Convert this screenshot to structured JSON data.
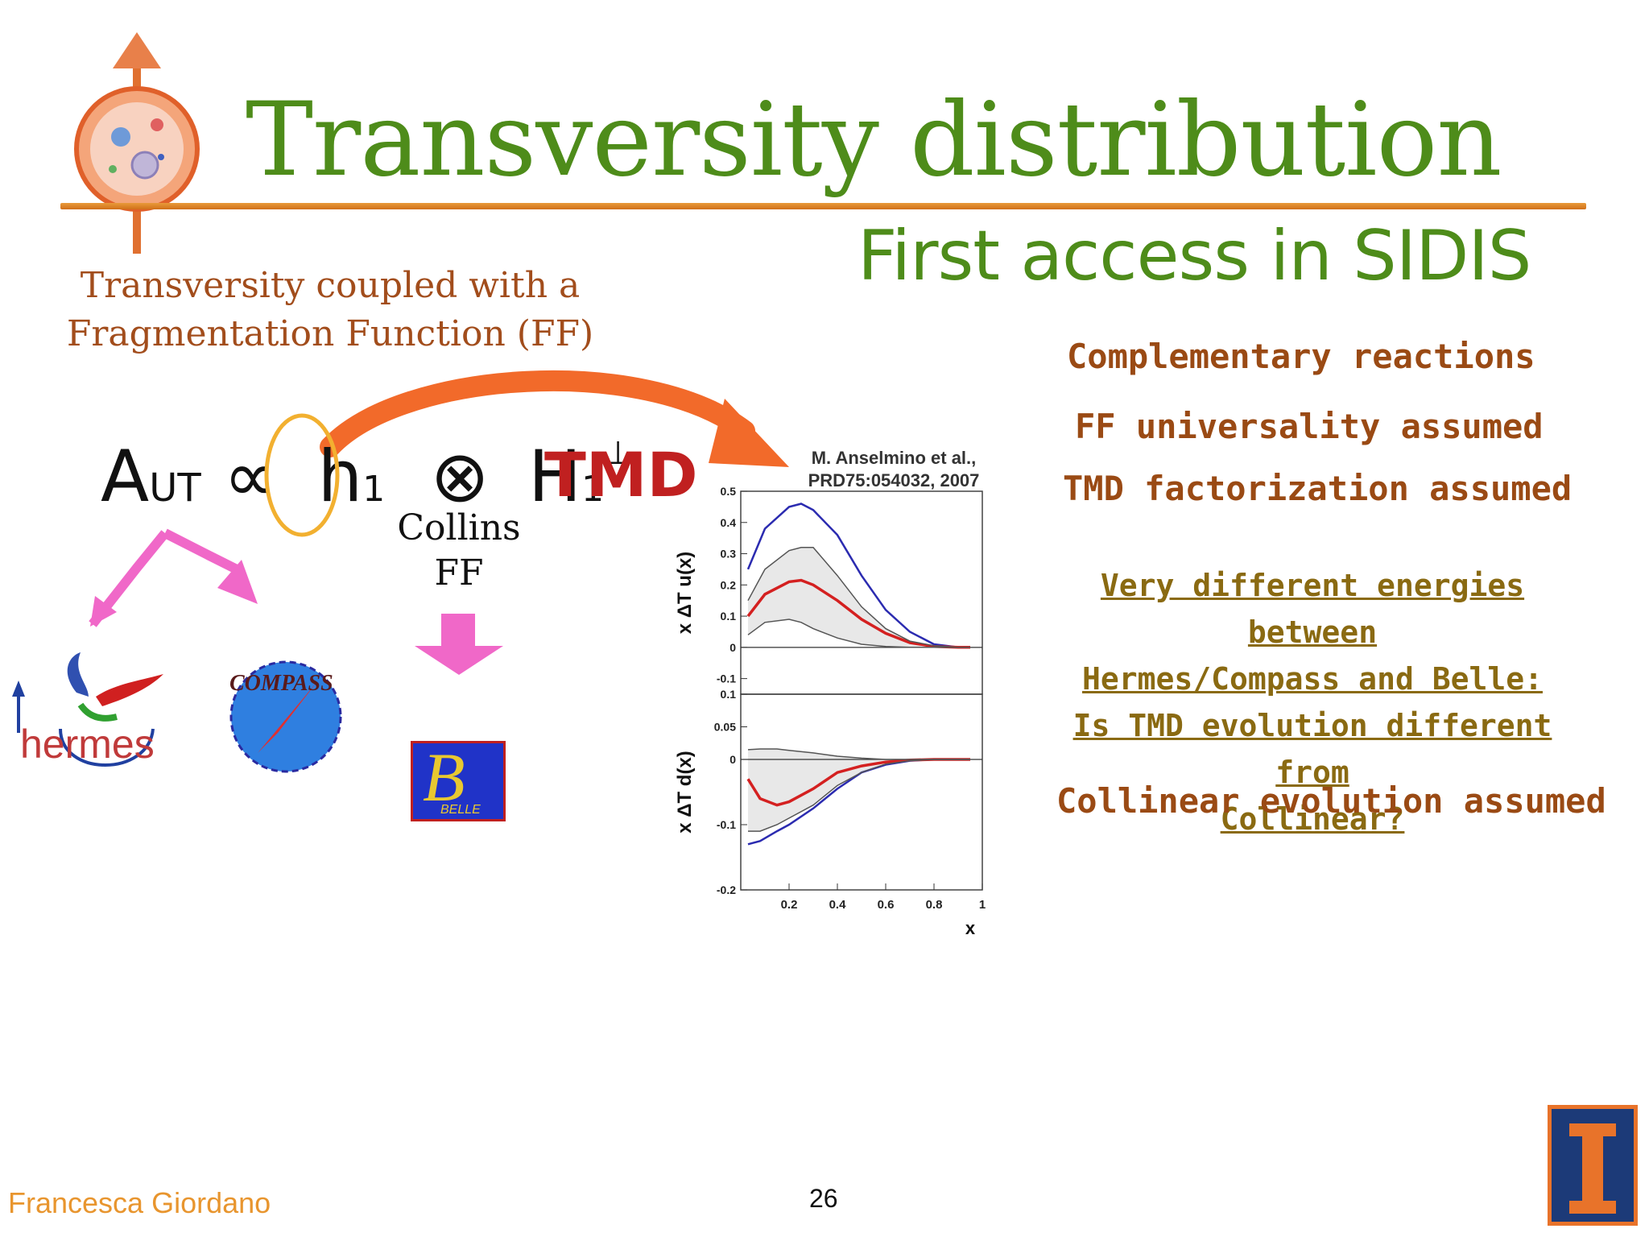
{
  "slide": {
    "title": "Transversity distribution",
    "subtitle": "First access in SIDIS",
    "intro_line1": "Transversity coupled with a",
    "intro_line2": "Fragmentation Function (FF)",
    "formula_a": "A",
    "formula_ut": "UT",
    "formula_prop": "∝",
    "formula_h": "h",
    "formula_h_sub": "1",
    "formula_otimes": "⊗",
    "formula_H": "H",
    "formula_H_sub": "1",
    "formula_H_sup": "⊥",
    "tmd_label": "TMD",
    "collins_line1": "Collins",
    "collins_line2": "FF",
    "right_items": [
      "Complementary reactions",
      "FF universality assumed",
      "TMD factorization assumed"
    ],
    "question_lines": [
      "Very different energies between",
      "Hermes/Compass and Belle:",
      "Is TMD evolution different from",
      "Collinear?"
    ],
    "closing_item": "Collinear evolution assumed",
    "footer_name": "Francesca Giordano",
    "page_number": "26",
    "logos": {
      "hermes": "hermes",
      "compass": "COMPASS",
      "belle": "BELLE"
    }
  },
  "chart_data": {
    "type": "line",
    "reference_line1": "M. Anselmino et al.,",
    "reference_line2": "PRD75:054032, 2007",
    "xlabel": "x",
    "x_ticks": [
      "0.2",
      "0.4",
      "0.6",
      "0.8",
      "1"
    ],
    "top_panel": {
      "ylabel": "x ΔT u(x)",
      "ylim": [
        -0.15,
        0.5
      ],
      "y_ticks": [
        "0.5",
        "0.4",
        "0.3",
        "0.2",
        "0.1",
        "0",
        "-0.1"
      ],
      "x": [
        0.03,
        0.1,
        0.2,
        0.25,
        0.3,
        0.4,
        0.5,
        0.6,
        0.7,
        0.8,
        0.9,
        0.95
      ],
      "series": [
        {
          "values": [
            0.25,
            0.38,
            0.45,
            0.46,
            0.44,
            0.36,
            0.23,
            0.12,
            0.05,
            0.01,
            0.0,
            0.0
          ],
          "color": "#2b2bb0"
        },
        {
          "values": [
            0.1,
            0.17,
            0.21,
            0.215,
            0.2,
            0.15,
            0.09,
            0.045,
            0.015,
            0.003,
            0.0,
            0.0
          ],
          "color": "#d42020"
        },
        {
          "values": [
            0.15,
            0.25,
            0.31,
            0.32,
            0.32,
            0.23,
            0.13,
            0.06,
            0.02,
            0.005,
            0.0,
            0.0
          ],
          "color": "#555555"
        },
        {
          "values": [
            0.04,
            0.08,
            0.09,
            0.08,
            0.06,
            0.03,
            0.01,
            0.003,
            0.0,
            0.0,
            0.0,
            0.0
          ],
          "color": "#555555"
        }
      ]
    },
    "bottom_panel": {
      "ylabel": "x ΔT d(x)",
      "ylim": [
        -0.2,
        0.1
      ],
      "y_ticks": [
        "0.1",
        "0.05",
        "0",
        "-0.1",
        "-0.2"
      ],
      "x": [
        0.03,
        0.08,
        0.15,
        0.2,
        0.3,
        0.4,
        0.5,
        0.6,
        0.7,
        0.8,
        0.9,
        0.95
      ],
      "series": [
        {
          "values": [
            -0.13,
            -0.125,
            -0.11,
            -0.1,
            -0.075,
            -0.045,
            -0.02,
            -0.008,
            -0.002,
            0.0,
            0.0,
            0.0
          ],
          "color": "#2b2bb0"
        },
        {
          "values": [
            -0.03,
            -0.06,
            -0.07,
            -0.065,
            -0.045,
            -0.02,
            -0.01,
            -0.004,
            -0.001,
            0.0,
            0.0,
            0.0
          ],
          "color": "#d42020"
        },
        {
          "values": [
            0.015,
            0.016,
            0.016,
            0.014,
            0.01,
            0.005,
            0.002,
            0.0,
            0.0,
            0.0,
            0.0,
            0.0
          ],
          "color": "#555555"
        },
        {
          "values": [
            -0.11,
            -0.11,
            -0.1,
            -0.09,
            -0.07,
            -0.04,
            -0.02,
            -0.007,
            -0.002,
            0.0,
            0.0,
            0.0
          ],
          "color": "#555555"
        }
      ]
    }
  }
}
